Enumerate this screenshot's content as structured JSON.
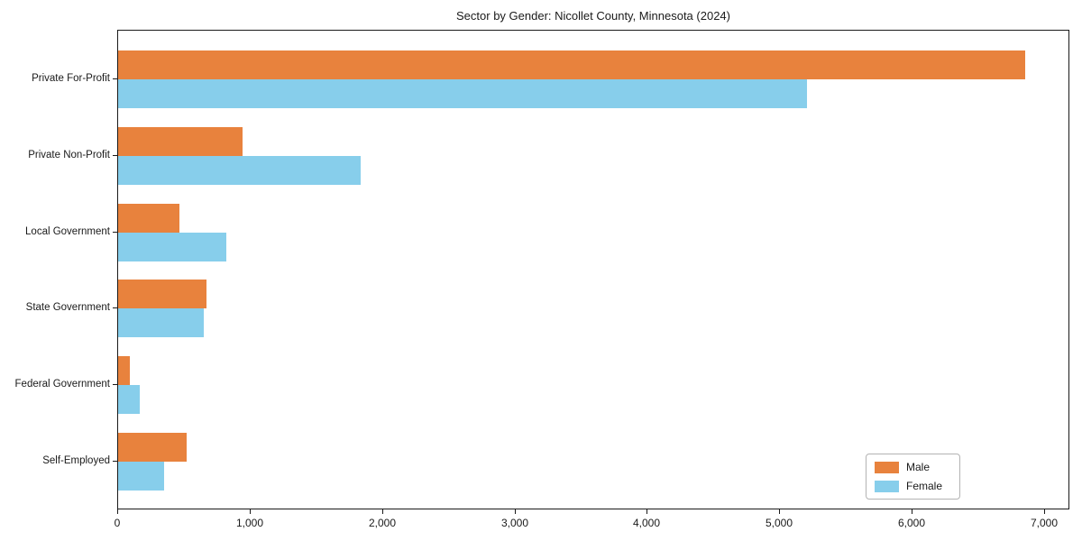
{
  "chart_data": {
    "type": "bar",
    "orientation": "horizontal",
    "title": "Sector by Gender: Nicollet County, Minnesota (2024)",
    "categories": [
      "Private For-Profit",
      "Private Non-Profit",
      "Local Government",
      "State Government",
      "Federal Government",
      "Self-Employed"
    ],
    "series": [
      {
        "name": "Male",
        "color": "#e8823d",
        "values": [
          6850,
          940,
          460,
          670,
          90,
          520
        ]
      },
      {
        "name": "Female",
        "color": "#87ceeb",
        "values": [
          5200,
          1830,
          820,
          650,
          165,
          345
        ]
      }
    ],
    "xlabel": "",
    "ylabel": "",
    "xlim": [
      0,
      7190
    ],
    "xticks": [
      0,
      1000,
      2000,
      3000,
      4000,
      5000,
      6000,
      7000
    ],
    "xtick_labels": [
      "0",
      "1,000",
      "2,000",
      "3,000",
      "4,000",
      "5,000",
      "6,000",
      "7,000"
    ],
    "grid": false,
    "legend_position": "lower right",
    "colors": {
      "male": "#e8823d",
      "female": "#87ceeb",
      "spine": "#1a1a1a",
      "background": "#ffffff"
    }
  }
}
